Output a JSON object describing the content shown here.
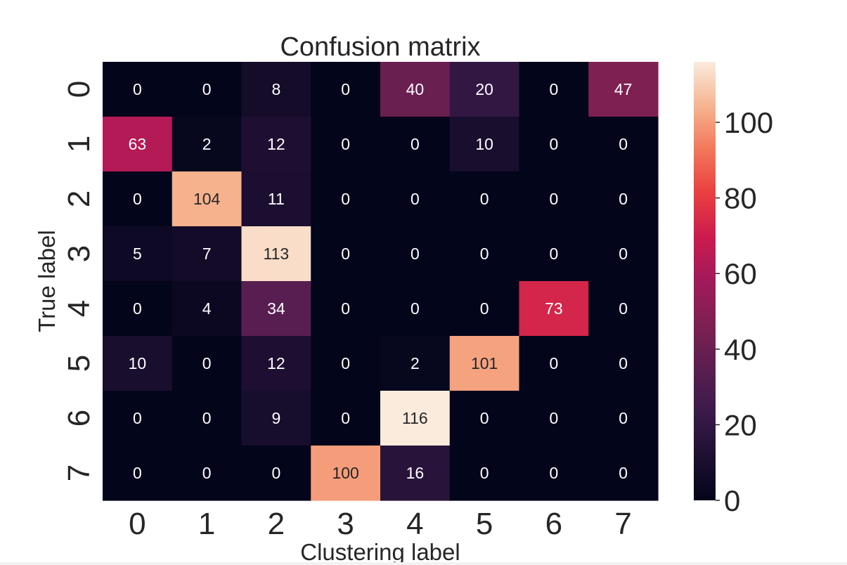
{
  "chart_data": {
    "type": "heatmap",
    "title": "Confusion matrix",
    "xlabel": "Clustering label",
    "ylabel": "True label",
    "x_tick_labels": [
      "0",
      "1",
      "2",
      "3",
      "4",
      "5",
      "6",
      "7"
    ],
    "y_tick_labels": [
      "0",
      "1",
      "2",
      "3",
      "4",
      "5",
      "6",
      "7"
    ],
    "matrix": [
      [
        0,
        0,
        8,
        0,
        40,
        20,
        0,
        47
      ],
      [
        63,
        2,
        12,
        0,
        0,
        10,
        0,
        0
      ],
      [
        0,
        104,
        11,
        0,
        0,
        0,
        0,
        0
      ],
      [
        5,
        7,
        113,
        0,
        0,
        0,
        0,
        0
      ],
      [
        0,
        4,
        34,
        0,
        0,
        0,
        73,
        0
      ],
      [
        10,
        0,
        12,
        0,
        2,
        101,
        0,
        0
      ],
      [
        0,
        0,
        9,
        0,
        116,
        0,
        0,
        0
      ],
      [
        0,
        0,
        0,
        100,
        16,
        0,
        0,
        0
      ]
    ],
    "colormap": "rocket",
    "colorbar": {
      "range": [
        0,
        116
      ],
      "ticks": [
        0,
        20,
        40,
        60,
        80,
        100
      ],
      "tick_labels": [
        "0",
        "20",
        "40",
        "60",
        "80",
        "100"
      ]
    },
    "annotations": true,
    "grid": false
  }
}
